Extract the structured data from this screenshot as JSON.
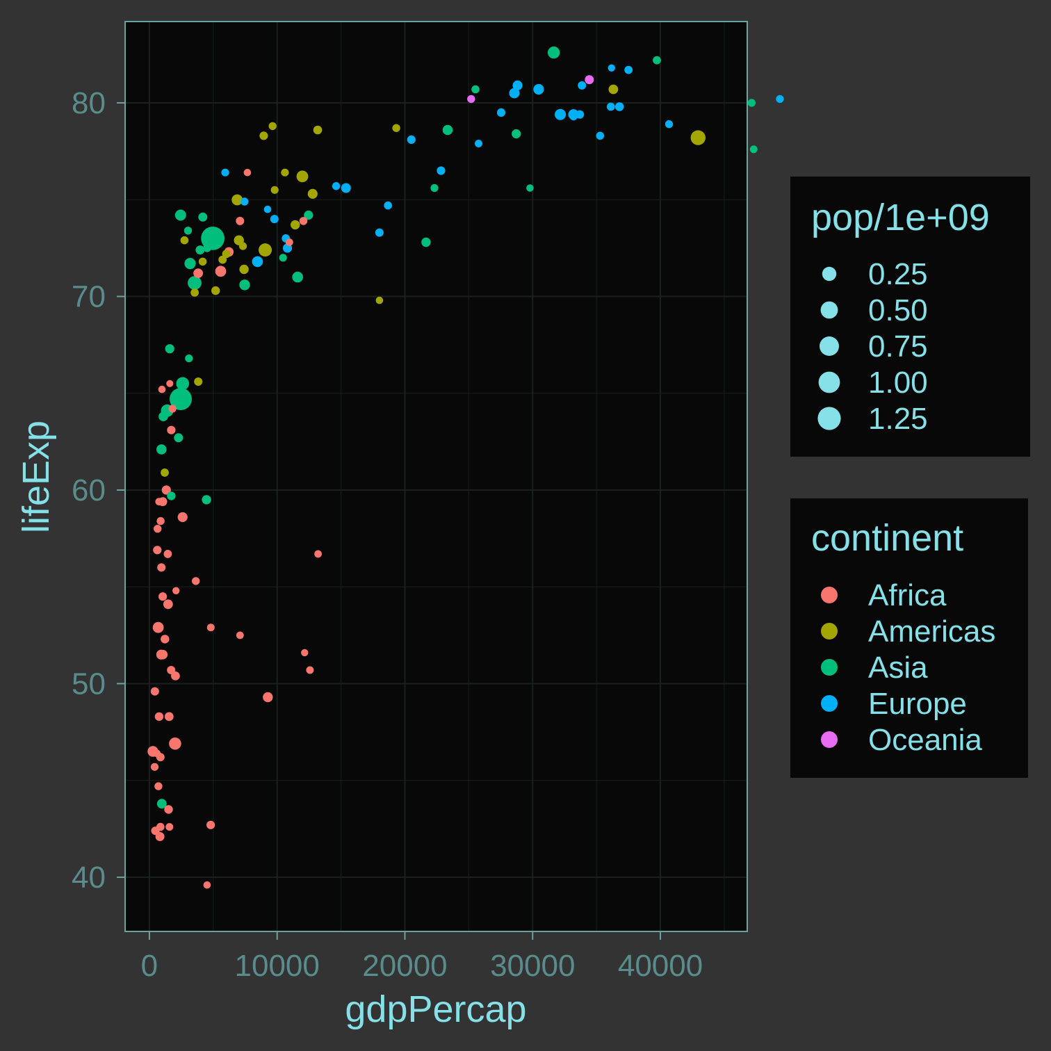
{
  "colors": {
    "background": "#333333",
    "panel": "#080808",
    "panel_border": "#6aa3a3",
    "grid": "#1a201c",
    "tick_text": "#5a8c8c",
    "label_text": "#86e0e8",
    "legend_bg": "#080808",
    "size_key": "#86e0e8"
  },
  "chart_data": {
    "type": "scatter",
    "xlabel": "gdpPercap",
    "ylabel": "lifeExp",
    "xlim": [
      -1900,
      46800
    ],
    "ylim": [
      37.2,
      84.2
    ],
    "x_ticks": [
      0,
      10000,
      20000,
      30000,
      40000
    ],
    "x_tick_labels": [
      "0",
      "10000",
      "20000",
      "30000",
      "40000"
    ],
    "y_ticks": [
      40,
      50,
      60,
      70,
      80
    ],
    "y_tick_labels": [
      "40",
      "50",
      "60",
      "70",
      "80"
    ],
    "grid": true,
    "legend_position": "right",
    "size_legend": {
      "title": "pop/1e+09",
      "labels": [
        "0.25",
        "0.50",
        "0.75",
        "1.00",
        "1.25"
      ],
      "values": [
        0.25,
        0.5,
        0.75,
        1.0,
        1.25
      ]
    },
    "color_legend": {
      "title": "continent",
      "labels": [
        "Africa",
        "Americas",
        "Asia",
        "Europe",
        "Oceania"
      ],
      "colors": [
        "#f8766d",
        "#a3a500",
        "#00bf7d",
        "#00b0f6",
        "#e76bf3"
      ]
    },
    "series": [
      {
        "name": "Africa",
        "color": "#f8766d",
        "points": [
          [
            6223,
            72.3,
            0.03
          ],
          [
            4797,
            42.7,
            0.012
          ],
          [
            1441,
            56.7,
            0.008
          ],
          [
            12570,
            50.7,
            0.002
          ],
          [
            1217,
            52.3,
            0.014
          ],
          [
            430,
            49.6,
            0.009
          ],
          [
            2042,
            50.4,
            0.018
          ],
          [
            706,
            44.7,
            0.004
          ],
          [
            1704,
            50.7,
            0.01
          ],
          [
            986,
            65.2,
            0.001
          ],
          [
            278,
            46.5,
            0.065
          ],
          [
            3633,
            55.3,
            0.004
          ],
          [
            1545,
            48.3,
            0.018
          ],
          [
            2082,
            54.8,
            0.0005
          ],
          [
            5581,
            71.3,
            0.08
          ],
          [
            12154,
            51.6,
            0.0005
          ],
          [
            641,
            58.0,
            0.005
          ],
          [
            690,
            52.9,
            0.077
          ],
          [
            13206,
            56.7,
            0.0015
          ],
          [
            753,
            59.4,
            0.0015
          ],
          [
            1328,
            60.0,
            0.023
          ],
          [
            943,
            56.0,
            0.0095
          ],
          [
            579,
            46.4,
            0.0015
          ],
          [
            1463,
            54.1,
            0.035
          ],
          [
            1569,
            42.6,
            0.002
          ],
          [
            415,
            45.7,
            0.0035
          ],
          [
            12057,
            73.9,
            0.006
          ],
          [
            1045,
            59.4,
            0.019
          ],
          [
            759,
            48.3,
            0.0135
          ],
          [
            1042,
            54.5,
            0.012
          ],
          [
            1803,
            64.2,
            0.003
          ],
          [
            10957,
            72.8,
            0.0013
          ],
          [
            3820,
            71.2,
            0.034
          ],
          [
            824,
            42.1,
            0.02
          ],
          [
            4811,
            52.9,
            0.002
          ],
          [
            620,
            56.9,
            0.012
          ],
          [
            2014,
            46.9,
            0.135
          ],
          [
            7670,
            76.4,
            0.0008
          ],
          [
            863,
            46.2,
            0.009
          ],
          [
            1598,
            65.5,
            0.0002
          ],
          [
            1712,
            63.1,
            0.012
          ],
          [
            862,
            42.6,
            0.006
          ],
          [
            9270,
            49.3,
            0.044
          ],
          [
            2602,
            58.6,
            0.042
          ],
          [
            4513,
            39.6,
            0.0011
          ],
          [
            7093,
            52.5,
            0.0014
          ],
          [
            926,
            51.5,
            0.04
          ],
          [
            883,
            58.4,
            0.005
          ],
          [
            7093,
            73.9,
            0.01
          ],
          [
            1056,
            51.5,
            0.029
          ],
          [
            470,
            42.4,
            0.012
          ],
          [
            1500,
            43.5,
            0.0123
          ]
        ]
      },
      {
        "name": "Americas",
        "color": "#a3a500",
        "points": [
          [
            12779,
            75.3,
            0.04
          ],
          [
            3822,
            65.6,
            0.009
          ],
          [
            9066,
            72.4,
            0.19
          ],
          [
            36319,
            80.7,
            0.033
          ],
          [
            13172,
            78.6,
            0.016
          ],
          [
            7007,
            72.9,
            0.044
          ],
          [
            9645,
            78.8,
            0.004
          ],
          [
            8948,
            78.3,
            0.011
          ],
          [
            6025,
            72.2,
            0.009
          ],
          [
            6873,
            74.99,
            0.08
          ],
          [
            5728,
            71.9,
            0.007
          ],
          [
            5186,
            70.3,
            0.013
          ],
          [
            1202,
            60.9,
            0.008
          ],
          [
            3548,
            70.2,
            0.007
          ],
          [
            7321,
            72.6,
            0.003
          ],
          [
            11978,
            76.2,
            0.108
          ],
          [
            2749,
            72.9,
            0.006
          ],
          [
            9809,
            75.5,
            0.003
          ],
          [
            4173,
            71.8,
            0.006
          ],
          [
            7409,
            71.4,
            0.028
          ],
          [
            19329,
            78.7,
            0.004
          ],
          [
            18009,
            69.8,
            0.001
          ],
          [
            42952,
            78.2,
            0.3
          ],
          [
            10611,
            76.4,
            0.003
          ],
          [
            11416,
            73.7,
            0.026
          ]
        ]
      },
      {
        "name": "Asia",
        "color": "#00bf7d",
        "points": [
          [
            975,
            43.8,
            0.032
          ],
          [
            29796,
            75.6,
            0.0007
          ],
          [
            1391,
            64.1,
            0.15
          ],
          [
            1714,
            59.7,
            0.014
          ],
          [
            4959,
            73.0,
            1.32
          ],
          [
            39725,
            82.2,
            0.0069
          ],
          [
            2452,
            64.7,
            1.11
          ],
          [
            3541,
            70.7,
            0.224
          ],
          [
            11606,
            71.0,
            0.07
          ],
          [
            4471,
            59.5,
            0.027
          ],
          [
            25523,
            80.7,
            0.0064
          ],
          [
            31656,
            82.6,
            0.127
          ],
          [
            4519,
            72.5,
            0.006
          ],
          [
            1593,
            67.3,
            0.023
          ],
          [
            23348,
            78.6,
            0.049
          ],
          [
            47307,
            77.6,
            0.0025
          ],
          [
            10461,
            72.0,
            0.0039
          ],
          [
            12452,
            74.2,
            0.024
          ],
          [
            3096,
            66.8,
            0.003
          ],
          [
            944,
            62.1,
            0.047
          ],
          [
            1091,
            63.8,
            0.029
          ],
          [
            22316,
            75.6,
            0.0033
          ],
          [
            2606,
            65.5,
            0.169
          ],
          [
            3190,
            71.7,
            0.091
          ],
          [
            21655,
            72.8,
            0.027
          ],
          [
            47143,
            80.0,
            0.0046
          ],
          [
            3970,
            72.4,
            0.02
          ],
          [
            4185,
            74.1,
            0.02
          ],
          [
            28718,
            78.4,
            0.023
          ],
          [
            7458,
            70.6,
            0.065
          ],
          [
            2442,
            74.2,
            0.085
          ],
          [
            3026,
            73.4,
            0.0041
          ],
          [
            2281,
            62.7,
            0.022
          ]
        ]
      },
      {
        "name": "Europe",
        "color": "#00b0f6",
        "points": [
          [
            5937,
            76.4,
            0.0036
          ],
          [
            36126,
            79.8,
            0.0082
          ],
          [
            33693,
            79.4,
            0.0104
          ],
          [
            7446,
            74.9,
            0.0045
          ],
          [
            10681,
            73.0,
            0.0073
          ],
          [
            14619,
            75.7,
            0.0045
          ],
          [
            22833,
            76.5,
            0.0102
          ],
          [
            35278,
            78.3,
            0.0054
          ],
          [
            33207,
            79.3,
            0.0052
          ],
          [
            30470,
            80.7,
            0.0611
          ],
          [
            32170,
            79.4,
            0.0824
          ],
          [
            27538,
            79.5,
            0.0107
          ],
          [
            18009,
            73.3,
            0.01
          ],
          [
            36181,
            81.8,
            0.0003
          ],
          [
            40676,
            78.9,
            0.0041
          ],
          [
            28570,
            80.5,
            0.0581
          ],
          [
            9254,
            74.5,
            0.0007
          ],
          [
            36798,
            79.8,
            0.0166
          ],
          [
            49357,
            80.2,
            0.0046
          ],
          [
            15390,
            75.6,
            0.0385
          ],
          [
            20510,
            78.1,
            0.0105
          ],
          [
            10808,
            72.5,
            0.0223
          ],
          [
            9787,
            74.0,
            0.01
          ],
          [
            18678,
            74.7,
            0.0054
          ],
          [
            25768,
            77.9,
            0.002
          ],
          [
            28821,
            80.9,
            0.0404
          ],
          [
            33860,
            80.9,
            0.0091
          ],
          [
            37506,
            81.7,
            0.0075
          ],
          [
            8458,
            71.8,
            0.0712
          ],
          [
            33203,
            79.4,
            0.0608
          ]
        ]
      },
      {
        "name": "Oceania",
        "color": "#e76bf3",
        "points": [
          [
            34435,
            81.2,
            0.0202
          ],
          [
            25185,
            80.2,
            0.0041
          ]
        ]
      }
    ]
  }
}
